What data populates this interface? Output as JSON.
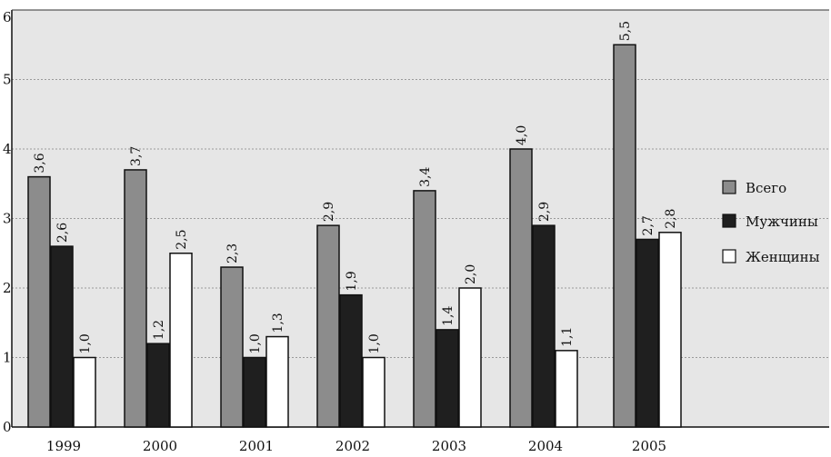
{
  "chart_data": {
    "type": "bar",
    "categories": [
      "1999",
      "2000",
      "2001",
      "2002",
      "2003",
      "2004",
      "2005"
    ],
    "series": [
      {
        "name": "Всего",
        "values": [
          3.6,
          3.7,
          2.3,
          2.9,
          3.4,
          4.0,
          5.5
        ],
        "labels": [
          "3,6",
          "3,7",
          "2,3",
          "2,9",
          "3,4",
          "4,0",
          "5,5"
        ],
        "color": "#8c8c8c"
      },
      {
        "name": "Мужчины",
        "values": [
          2.6,
          1.2,
          1.0,
          1.9,
          1.4,
          2.9,
          2.7
        ],
        "labels": [
          "2,6",
          "1,2",
          "1,0",
          "1,9",
          "1,4",
          "2,9",
          "2,7"
        ],
        "color": "#1f1f1f"
      },
      {
        "name": "Женщины",
        "values": [
          1.0,
          2.5,
          1.3,
          1.0,
          2.0,
          1.1,
          2.8
        ],
        "labels": [
          "1,0",
          "2,5",
          "1,3",
          "1,0",
          "2,0",
          "1,1",
          "2,8"
        ],
        "color": "#ffffff"
      }
    ],
    "ylim": [
      0,
      6
    ],
    "yticks": [
      "0",
      "1",
      "2",
      "3",
      "4",
      "5",
      "6"
    ],
    "grid": true,
    "legend": "right",
    "background_color": "#e6e6e6"
  }
}
